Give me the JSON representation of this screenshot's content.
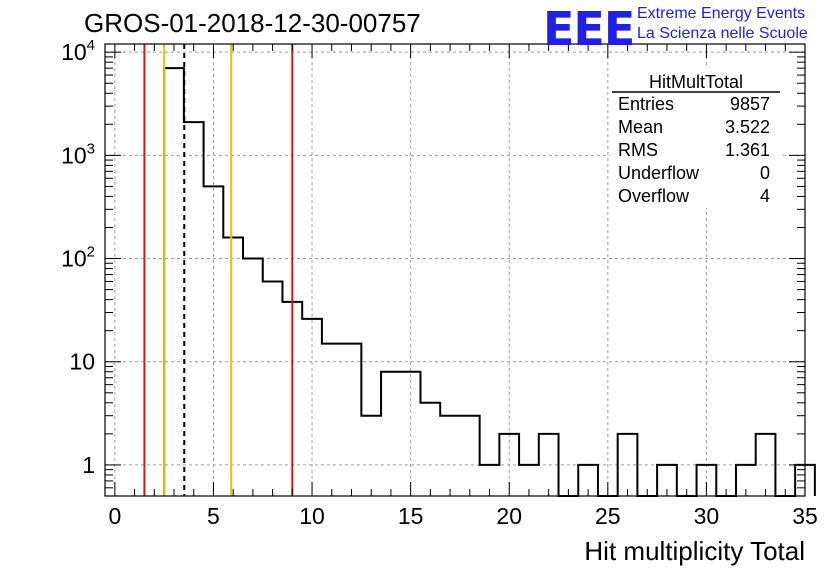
{
  "title": "GROS-01-2018-12-30-00757",
  "logo": {
    "mark": "EEE",
    "line1": "Extreme Energy Events",
    "line2": "La Scienza nelle Scuole",
    "color": "#1f1fe8"
  },
  "stats": {
    "name": "HitMultTotal",
    "rows": [
      {
        "label": "Entries",
        "value": "9857"
      },
      {
        "label": "Mean",
        "value": "3.522"
      },
      {
        "label": "RMS",
        "value": "1.361"
      },
      {
        "label": "Underflow",
        "value": "0"
      },
      {
        "label": "Overflow",
        "value": "4"
      }
    ]
  },
  "chart_data": {
    "type": "bar",
    "histogram": true,
    "log_y": true,
    "grid": true,
    "title": "GROS-01-2018-12-30-00757",
    "xlabel": "Hit multiplicity Total",
    "ylabel": "",
    "xlim": [
      -0.5,
      35
    ],
    "ylim": [
      0.5,
      12000
    ],
    "x_ticks": [
      0,
      5,
      10,
      15,
      20,
      25,
      30,
      35
    ],
    "y_ticks": [
      {
        "value": 1,
        "base": "1",
        "exp": ""
      },
      {
        "value": 10,
        "base": "10",
        "exp": ""
      },
      {
        "value": 100,
        "base": "10",
        "exp": "2"
      },
      {
        "value": 1000,
        "base": "10",
        "exp": "3"
      },
      {
        "value": 10000,
        "base": "10",
        "exp": "4"
      }
    ],
    "bin_width": 1,
    "bin_start": 2.5,
    "values": [
      7000,
      2100,
      500,
      160,
      100,
      60,
      38,
      26,
      15,
      15,
      3,
      8,
      8,
      4,
      3,
      3,
      1,
      2,
      1,
      2,
      0,
      1,
      0,
      2,
      0,
      1,
      0,
      1,
      0,
      1,
      2,
      0,
      1
    ],
    "vertical_lines": [
      {
        "x": 1.5,
        "color": "#e01010",
        "style": "solid"
      },
      {
        "x": 2.5,
        "color": "#f0c000",
        "style": "solid"
      },
      {
        "x": 3.52,
        "color": "#000000",
        "style": "dashed"
      },
      {
        "x": 5.9,
        "color": "#f0c000",
        "style": "solid"
      },
      {
        "x": 9.0,
        "color": "#e01010",
        "style": "solid"
      }
    ]
  }
}
